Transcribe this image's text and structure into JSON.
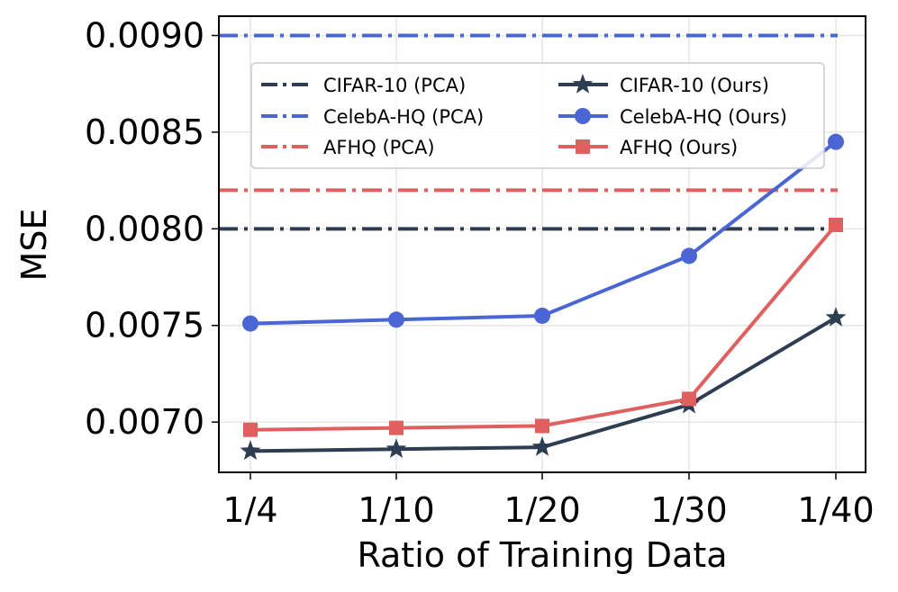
{
  "chart_data": {
    "type": "line",
    "title": "",
    "xlabel": "Ratio of Training Data",
    "ylabel": "MSE",
    "categories": [
      "1/4",
      "1/10",
      "1/20",
      "1/30",
      "1/40"
    ],
    "ylim": [
      0.00674,
      0.0091
    ],
    "yticks": [
      0.007,
      0.0075,
      0.008,
      0.0085,
      0.009
    ],
    "ytick_labels": [
      "0.0070",
      "0.0075",
      "0.0080",
      "0.0085",
      "0.0090"
    ],
    "grid": true,
    "legend_position": "top",
    "series": [
      {
        "name": "CIFAR-10 (PCA)",
        "kind": "hline",
        "value": 0.008,
        "color": "#2e3e52",
        "style": "dashdot"
      },
      {
        "name": "CelebA-HQ (PCA)",
        "kind": "hline",
        "value": 0.009,
        "color": "#4a66d4",
        "style": "dashdot"
      },
      {
        "name": "AFHQ (PCA)",
        "kind": "hline",
        "value": 0.0082,
        "color": "#e06060",
        "style": "dashdot"
      },
      {
        "name": "CIFAR-10 (Ours)",
        "kind": "line",
        "marker": "star",
        "color": "#2e3e52",
        "values": [
          0.00685,
          0.00686,
          0.00687,
          0.00709,
          0.00754
        ]
      },
      {
        "name": "CelebA-HQ (Ours)",
        "kind": "line",
        "marker": "circle",
        "color": "#4a66d4",
        "values": [
          0.00751,
          0.00753,
          0.00755,
          0.00786,
          0.00845
        ]
      },
      {
        "name": "AFHQ (Ours)",
        "kind": "line",
        "marker": "square",
        "color": "#e06060",
        "values": [
          0.00696,
          0.00697,
          0.00698,
          0.00712,
          0.00802
        ]
      }
    ]
  }
}
